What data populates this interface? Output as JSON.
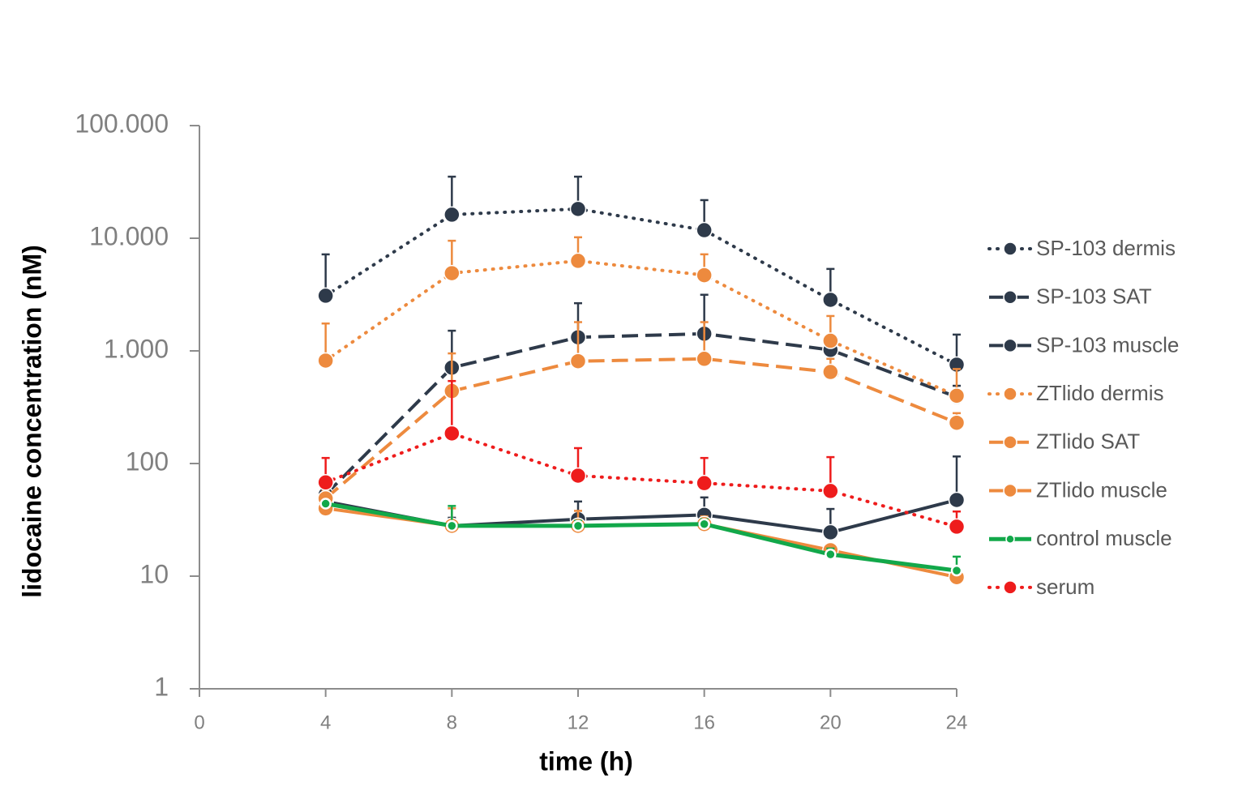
{
  "chart_data": {
    "type": "line",
    "x_label": "time (h)",
    "y_label": "lidocaine concentration (nM)",
    "log_y": true,
    "x": [
      4,
      8,
      12,
      16,
      20,
      24
    ],
    "xlim": [
      0,
      24
    ],
    "xticks": [
      0,
      4,
      8,
      12,
      16,
      20,
      24
    ],
    "ylim": [
      1,
      100000
    ],
    "yticks": [
      1,
      10,
      100,
      {
        "value": 1000,
        "label": "1.000"
      },
      {
        "value": 10000,
        "label": "10.000"
      },
      {
        "value": 100000,
        "label": "100.000"
      }
    ],
    "legend": "right",
    "series": [
      {
        "name": "SP-103 dermis",
        "color": "#2e3a4a",
        "dash": "dot",
        "values": [
          3090,
          16200,
          18200,
          11800,
          2840,
          755
        ],
        "errors": [
          4100,
          19000,
          17000,
          10000,
          2500,
          640
        ]
      },
      {
        "name": "SP-103 SAT",
        "color": "#2e3a4a",
        "dash": "dash",
        "values": [
          53,
          710,
          1320,
          1420,
          1020,
          390
        ],
        "errors": [
          8,
          800,
          1330,
          1730,
          200,
          100
        ]
      },
      {
        "name": "SP-103 muscle",
        "color": "#2e3a4a",
        "dash": "solid",
        "values": [
          46,
          28,
          32,
          35,
          24.5,
          47.5
        ],
        "errors": [
          10,
          5,
          14,
          15,
          15,
          68
        ]
      },
      {
        "name": "ZTlido dermis",
        "color": "#ed8a3e",
        "dash": "dot",
        "values": [
          820,
          4900,
          6300,
          4700,
          1230,
          400
        ],
        "errors": [
          930,
          4600,
          3900,
          2500,
          810,
          290
        ]
      },
      {
        "name": "ZTlido SAT",
        "color": "#ed8a3e",
        "dash": "dash",
        "values": [
          49,
          440,
          810,
          850,
          650,
          230
        ],
        "errors": [
          8,
          510,
          990,
          950,
          200,
          50
        ]
      },
      {
        "name": "ZTlido muscle",
        "color": "#ed8a3e",
        "dash": "solid",
        "values": [
          40,
          28,
          28,
          29,
          17,
          9.8
        ],
        "errors": [
          5,
          12,
          10,
          5,
          2,
          2
        ]
      },
      {
        "name": "control muscle",
        "color": "#12a84a",
        "dash": "solid",
        "marker": "small",
        "values": [
          44,
          28,
          28,
          29,
          15.6,
          11.2
        ],
        "errors": [
          3,
          14,
          3,
          3,
          2,
          3.7
        ]
      },
      {
        "name": "serum",
        "color": "#ee1c1c",
        "dash": "dot",
        "values": [
          68,
          185,
          78,
          67,
          57,
          27.5
        ],
        "errors": [
          44,
          355,
          59,
          45,
          57,
          10
        ]
      }
    ]
  }
}
